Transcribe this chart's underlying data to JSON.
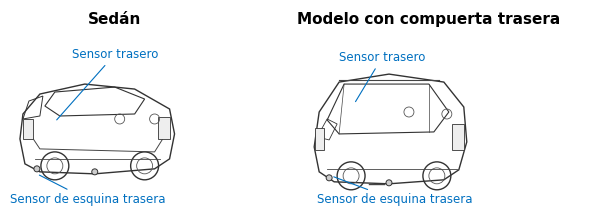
{
  "title_left": "Sedán",
  "title_right": "Modelo con compuerta trasera",
  "label_sensor_trasero": "Sensor trasero",
  "label_sensor_esquina": "Sensor de esquina trasera",
  "bg_color": "#ffffff",
  "text_color_title": "#000000",
  "text_color_label": "#0070c0",
  "title_fontsize": 11,
  "label_fontsize": 8.5,
  "fig_width": 5.97,
  "fig_height": 2.22
}
